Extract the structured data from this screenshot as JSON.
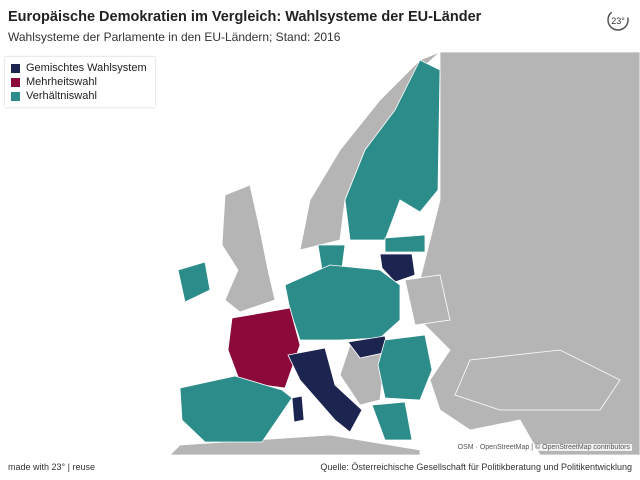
{
  "header": {
    "title": "Europäische Demokratien im Vergleich: Wahlsysteme der EU-Länder",
    "subtitle": "Wahlsysteme der Parlamente in den EU-Ländern; Stand: 2016"
  },
  "legend": {
    "items": [
      {
        "label": "Gemischtes Wahlsystem",
        "color": "#1c2450"
      },
      {
        "label": "Mehrheitswahl",
        "color": "#8c0a3a"
      },
      {
        "label": "Verhältniswahl",
        "color": "#2b8c8a"
      }
    ]
  },
  "map": {
    "attribution": "OSM · OpenStreetMap | © OpenStreetMap contributors"
  },
  "footer": {
    "left": "made with 23° | reuse",
    "source": "Quelle: Österreichische Gesellschaft für Politikberatung und Politikentwicklung"
  }
}
